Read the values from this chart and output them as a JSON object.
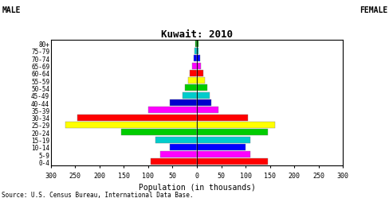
{
  "title": "Kuwait: 2010",
  "xlabel": "Population (in thousands)",
  "source": "Source: U.S. Census Bureau, International Data Base.",
  "male_label": "MALE",
  "female_label": "FEMALE",
  "age_groups": [
    "0-4",
    "5-9",
    "10-14",
    "15-19",
    "20-24",
    "25-29",
    "30-34",
    "35-39",
    "40-44",
    "45-49",
    "50-54",
    "55-59",
    "60-64",
    "65-69",
    "70-74",
    "75-79",
    "80+"
  ],
  "male_values": [
    95,
    75,
    55,
    85,
    155,
    270,
    245,
    100,
    55,
    30,
    25,
    18,
    14,
    10,
    7,
    4,
    3
  ],
  "female_values": [
    145,
    110,
    100,
    110,
    145,
    160,
    105,
    45,
    30,
    27,
    22,
    17,
    13,
    9,
    7,
    4,
    3
  ],
  "bar_colors": [
    "#ff0000",
    "#ff00ff",
    "#0000ff",
    "#00cccc",
    "#00cc00",
    "#ffff00",
    "#ff0000",
    "#ff00ff",
    "#0000cc",
    "#00cccc",
    "#00cc00",
    "#ffff00",
    "#ff0000",
    "#ff00ff",
    "#0000ff",
    "#00cccc",
    "#00aa00"
  ],
  "xlim": 300,
  "background": "#ffffff",
  "title_fontsize": 9,
  "label_fontsize": 7,
  "tick_fontsize": 6,
  "ytick_fontsize": 5.5,
  "source_fontsize": 5.5
}
